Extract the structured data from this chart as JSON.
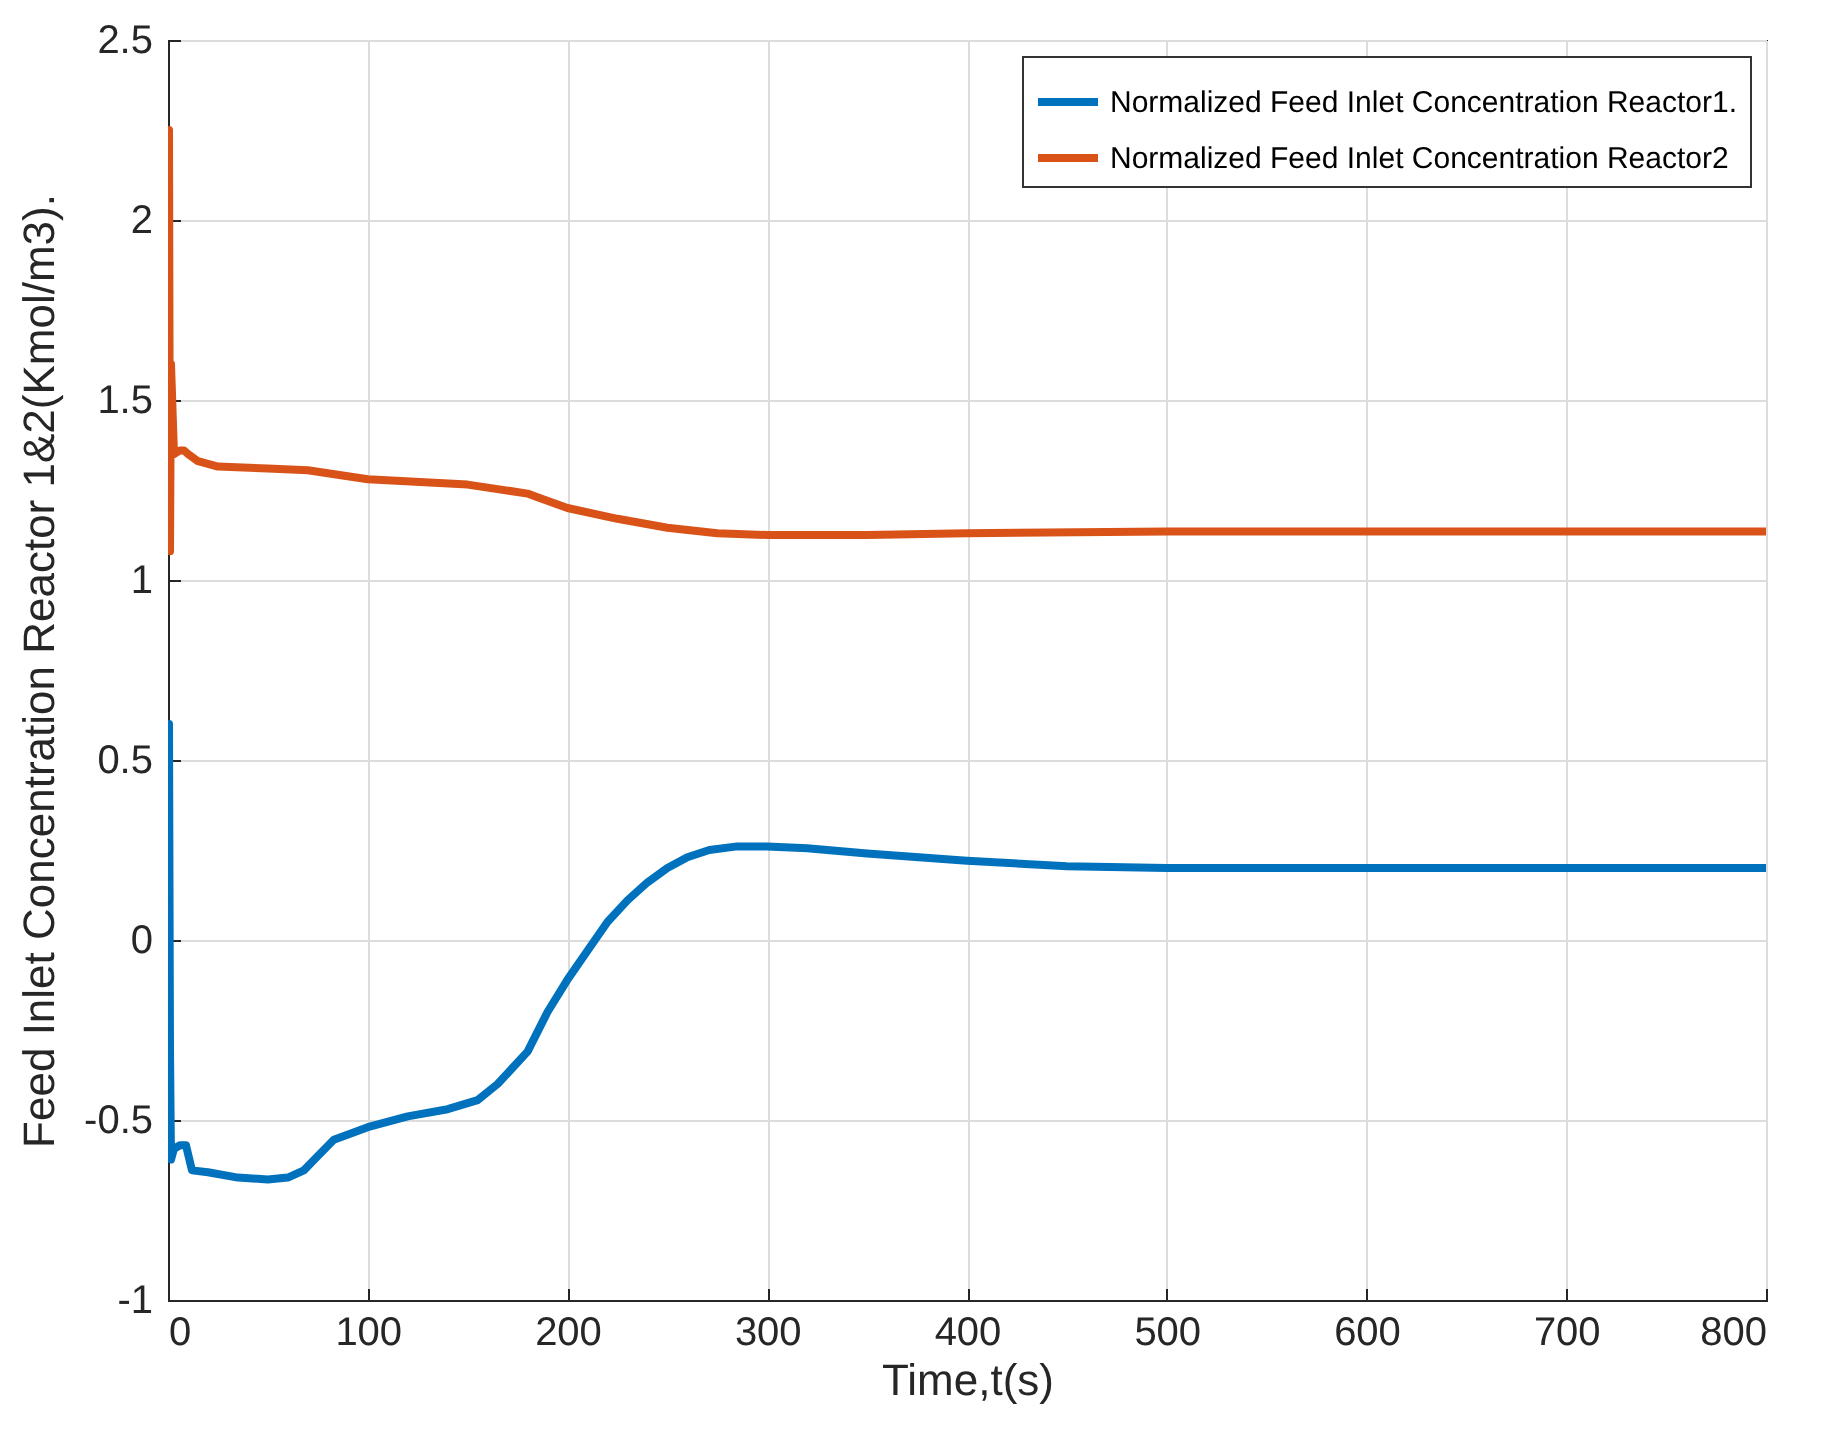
{
  "chart_data": {
    "type": "line",
    "xlabel": "Time,t(s)",
    "ylabel": "Feed Inlet Concentration Reactor 1&2(Kmol/m3).",
    "xlim": [
      0,
      800
    ],
    "xticks": [
      0,
      100,
      200,
      300,
      400,
      500,
      600,
      700,
      800
    ],
    "ylim": [
      -1,
      2.5
    ],
    "yticks": [
      -1,
      -0.5,
      0,
      0.5,
      1,
      1.5,
      2,
      2.5
    ],
    "grid": true,
    "legend": "top right",
    "line_style": "solid",
    "series": [
      {
        "name": "Normalized Feed Inlet Concentration Reactor1.",
        "color": "#0072bd",
        "x": [
          0,
          0.5,
          1,
          1.5,
          3,
          6,
          9,
          12,
          20,
          35,
          50,
          60,
          68,
          75,
          83,
          100,
          120,
          140,
          155,
          165,
          180,
          190,
          200,
          210,
          220,
          230,
          240,
          250,
          260,
          271,
          285,
          300,
          320,
          350,
          400,
          450,
          500,
          600,
          700,
          800
        ],
        "values": [
          0,
          0.6,
          -0.3,
          -0.61,
          -0.58,
          -0.57,
          -0.57,
          -0.64,
          -0.645,
          -0.66,
          -0.665,
          -0.66,
          -0.64,
          -0.6,
          -0.555,
          -0.52,
          -0.49,
          -0.47,
          -0.445,
          -0.4,
          -0.31,
          -0.2,
          -0.11,
          -0.03,
          0.05,
          0.11,
          0.16,
          0.2,
          0.23,
          0.25,
          0.26,
          0.26,
          0.255,
          0.24,
          0.22,
          0.205,
          0.2,
          0.2,
          0.2,
          0.2
        ]
      },
      {
        "name": "Normalized Feed Inlet Concentration Reactor2",
        "color": "#d95319",
        "x": [
          0,
          0.5,
          1,
          1.5,
          3,
          6,
          8,
          10,
          15,
          25,
          50,
          70,
          100,
          150,
          180,
          185,
          200,
          225,
          250,
          275,
          300,
          350,
          400,
          500,
          600,
          700,
          800
        ],
        "values": [
          1.5,
          2.25,
          1.08,
          1.6,
          1.35,
          1.36,
          1.36,
          1.35,
          1.33,
          1.315,
          1.31,
          1.305,
          1.28,
          1.265,
          1.24,
          1.23,
          1.2,
          1.17,
          1.145,
          1.13,
          1.125,
          1.125,
          1.13,
          1.135,
          1.135,
          1.135,
          1.135
        ]
      }
    ]
  }
}
